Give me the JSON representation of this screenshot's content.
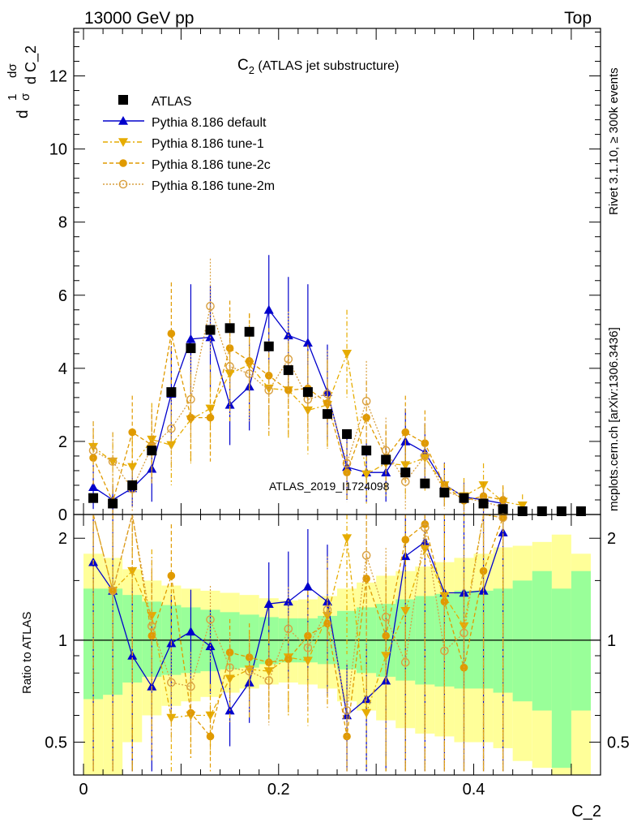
{
  "header": {
    "left_label": "13000 GeV pp",
    "right_label": "Top",
    "side_label_top": "Rivet 3.1.10, ≥ 300k events",
    "side_label_bottom": "mcplots.cern.ch [arXiv:1306.3436]",
    "watermark": "ATLAS_2019_I1724098"
  },
  "chart_data": [
    {
      "panel": "main",
      "type": "scatter",
      "title_main": "C",
      "title_sub": "2",
      "title_rest": " (ATLAS jet substructure)",
      "ylabel": "1/σ dσ/d C_2",
      "ylabel_parts": {
        "one": "1",
        "sigma": "σ",
        "d": "d",
        "dsigma": "dσ",
        "dC2": "d C_2"
      },
      "xlim": [
        -0.01,
        0.53
      ],
      "ylim": [
        0,
        13.3
      ],
      "yticks": [
        "0",
        "2",
        "4",
        "6",
        "8",
        "10",
        "12"
      ],
      "legend": {
        "placement": "top-left",
        "entries": [
          "ATLAS",
          "Pythia 8.186 default",
          "Pythia 8.186 tune-1",
          "Pythia 8.186 tune-2c",
          "Pythia 8.186 tune-2m"
        ]
      },
      "colors": {
        "atlas": "#000000",
        "default": "#0000cc",
        "tune1": "#e6ac00",
        "tune2c": "#e09a00",
        "tune2m": "#d9a040"
      },
      "x": [
        0.01,
        0.03,
        0.05,
        0.07,
        0.09,
        0.11,
        0.13,
        0.15,
        0.17,
        0.19,
        0.21,
        0.23,
        0.25,
        0.27,
        0.29,
        0.31,
        0.33,
        0.35,
        0.37,
        0.39,
        0.41,
        0.43,
        0.45,
        0.47,
        0.49,
        0.51
      ],
      "series": [
        {
          "name": "ATLAS",
          "values": [
            0.45,
            0.3,
            0.8,
            1.75,
            3.35,
            4.55,
            5.05,
            5.1,
            5.0,
            4.6,
            3.95,
            3.35,
            2.75,
            2.2,
            1.75,
            1.5,
            1.15,
            0.85,
            0.6,
            0.45,
            0.3,
            0.15,
            0.08,
            0.05,
            0.03,
            0.02
          ]
        },
        {
          "name": "Pythia 8.186 default",
          "values": [
            0.75,
            0.4,
            0.72,
            1.25,
            3.3,
            4.8,
            4.85,
            3.0,
            3.5,
            5.6,
            4.9,
            4.7,
            3.35,
            1.3,
            1.15,
            1.15,
            2.0,
            1.7,
            0.82,
            0.48,
            0.4,
            0.3,
            null,
            null,
            null,
            null
          ],
          "errors": [
            0.6,
            0.4,
            0.5,
            0.9,
            1.3,
            1.5,
            1.4,
            1.1,
            1.2,
            1.5,
            1.6,
            1.6,
            1.3,
            0.9,
            0.8,
            0.8,
            0.9,
            0.8,
            0.6,
            0.4,
            0.4,
            0.3,
            null,
            null,
            null,
            null
          ]
        },
        {
          "name": "Pythia 8.186 tune-1",
          "values": [
            1.85,
            1.45,
            1.3,
            2.05,
            1.9,
            2.6,
            2.9,
            3.85,
            4.1,
            3.45,
            3.4,
            2.85,
            3.0,
            4.4,
            1.1,
            1.4,
            1.35,
            1.55,
            0.8,
            0.5,
            0.8,
            0.35,
            0.25,
            null,
            null,
            null
          ],
          "errors": [
            0.7,
            0.8,
            0.8,
            1.0,
            1.1,
            1.2,
            1.2,
            1.3,
            1.4,
            1.3,
            1.3,
            1.2,
            1.2,
            1.2,
            0.8,
            0.9,
            0.9,
            0.9,
            0.6,
            0.5,
            0.6,
            0.4,
            0.3,
            null,
            null,
            null
          ]
        },
        {
          "name": "Pythia 8.186 tune-2c",
          "values": [
            1.55,
            0.35,
            2.25,
            1.9,
            4.95,
            2.65,
            2.65,
            4.55,
            4.2,
            3.8,
            3.4,
            3.45,
            3.05,
            1.15,
            2.65,
            1.55,
            2.25,
            1.95,
            0.8,
            0.38,
            0.5,
            0.4,
            null,
            null,
            null,
            null
          ],
          "errors": [
            0.8,
            0.5,
            1.0,
            1.0,
            1.4,
            1.2,
            1.2,
            1.3,
            1.3,
            1.3,
            1.2,
            1.2,
            1.2,
            0.8,
            1.0,
            0.9,
            1.0,
            0.9,
            0.6,
            0.4,
            0.4,
            0.4,
            null,
            null,
            null,
            null
          ]
        },
        {
          "name": "Pythia 8.186 tune-2m",
          "values": [
            1.75,
            1.45,
            0.7,
            1.85,
            2.35,
            3.15,
            5.7,
            4.05,
            3.85,
            3.4,
            4.25,
            3.15,
            3.3,
            1.4,
            3.1,
            1.75,
            0.9,
            1.6,
            0.65,
            0.45,
            0.35,
            0.2,
            null,
            null,
            null,
            null
          ],
          "errors": [
            0.8,
            0.8,
            0.6,
            1.0,
            1.1,
            1.2,
            1.3,
            1.3,
            1.3,
            1.2,
            1.3,
            1.2,
            1.2,
            0.9,
            1.1,
            0.9,
            0.8,
            0.9,
            0.5,
            0.4,
            0.4,
            0.3,
            null,
            null,
            null,
            null
          ]
        }
      ]
    },
    {
      "panel": "ratio",
      "type": "line",
      "ylabel": "Ratio to ATLAS",
      "xlabel": "C_2",
      "scale": "log",
      "ylim": [
        0.4,
        2.35
      ],
      "yticks": [
        "0.5",
        "1",
        "2"
      ],
      "xticks": [
        "0",
        "0.2",
        "0.4"
      ],
      "reference_line": 1,
      "bin_edges": [
        0.0,
        0.02,
        0.04,
        0.06,
        0.08,
        0.1,
        0.12,
        0.14,
        0.16,
        0.18,
        0.2,
        0.22,
        0.24,
        0.26,
        0.28,
        0.3,
        0.32,
        0.34,
        0.36,
        0.38,
        0.4,
        0.42,
        0.44,
        0.46,
        0.48,
        0.5,
        0.52
      ],
      "band_inner": {
        "color": "#99ff99",
        "lo": [
          0.67,
          0.69,
          0.75,
          0.78,
          0.79,
          0.8,
          0.81,
          0.82,
          0.83,
          0.85,
          0.86,
          0.86,
          0.85,
          0.82,
          0.8,
          0.78,
          0.76,
          0.74,
          0.73,
          0.72,
          0.72,
          0.7,
          0.66,
          0.62,
          0.42,
          0.62
        ],
        "hi": [
          1.42,
          1.42,
          1.36,
          1.3,
          1.27,
          1.25,
          1.23,
          1.21,
          1.19,
          1.17,
          1.16,
          1.16,
          1.18,
          1.22,
          1.25,
          1.28,
          1.32,
          1.35,
          1.37,
          1.4,
          1.4,
          1.42,
          1.5,
          1.6,
          1.42,
          1.6
        ]
      },
      "band_outer": {
        "color": "#ffff99",
        "lo": [
          0.4,
          0.4,
          0.5,
          0.6,
          0.64,
          0.66,
          0.68,
          0.7,
          0.72,
          0.74,
          0.75,
          0.74,
          0.72,
          0.66,
          0.62,
          0.58,
          0.55,
          0.53,
          0.52,
          0.5,
          0.5,
          0.48,
          0.44,
          0.42,
          0.4,
          0.4
        ],
        "hi": [
          1.8,
          1.75,
          1.62,
          1.5,
          1.45,
          1.42,
          1.4,
          1.38,
          1.36,
          1.33,
          1.31,
          1.32,
          1.35,
          1.42,
          1.48,
          1.55,
          1.6,
          1.65,
          1.7,
          1.75,
          1.8,
          1.88,
          1.9,
          1.95,
          2.05,
          1.8
        ]
      },
      "series": [
        {
          "name": "Pythia 8.186 default",
          "values": [
            1.7,
            1.4,
            0.9,
            0.73,
            0.98,
            1.06,
            0.96,
            0.62,
            0.75,
            1.28,
            1.3,
            1.44,
            1.3,
            0.6,
            0.67,
            0.76,
            1.77,
            1.95,
            1.38,
            1.38,
            1.4,
            2.08
          ]
        },
        {
          "name": "Pythia 8.186 tune-1",
          "values": [
            2.5,
            1.4,
            1.6,
            1.18,
            0.59,
            0.6,
            0.6,
            0.77,
            0.82,
            0.81,
            0.89,
            0.87,
            1.18,
            2.0,
            0.61,
            0.9,
            1.22,
            1.86,
            1.35,
            1.1,
            2.5,
            2.3
          ]
        },
        {
          "name": "Pythia 8.186 tune-2c",
          "values": [
            2.5,
            1.4,
            2.5,
            1.03,
            1.55,
            0.61,
            0.52,
            0.92,
            0.89,
            0.86,
            0.88,
            1.03,
            1.12,
            0.52,
            1.52,
            1.03,
            1.98,
            2.2,
            1.3,
            0.83,
            1.6,
            2.3
          ]
        },
        {
          "name": "Pythia 8.186 tune-2m",
          "values": [
            2.5,
            1.4,
            2.5,
            1.1,
            0.75,
            0.73,
            1.15,
            0.83,
            0.81,
            0.76,
            1.08,
            0.95,
            1.23,
            0.62,
            1.78,
            1.17,
            0.86,
            2.15,
            0.93,
            1.05,
            2.5,
            2.3
          ]
        }
      ]
    }
  ]
}
